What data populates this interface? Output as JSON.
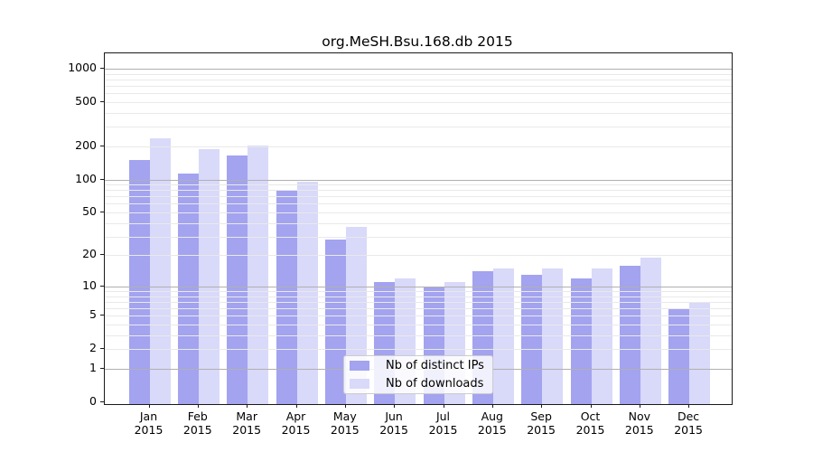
{
  "chart_data": {
    "type": "bar",
    "title": "org.MeSH.Bsu.168.db 2015",
    "categories": [
      "Jan",
      "Feb",
      "Mar",
      "Apr",
      "May",
      "Jun",
      "Jul",
      "Aug",
      "Sep",
      "Oct",
      "Nov",
      "Dec"
    ],
    "category_year": "2015",
    "series": [
      {
        "name": "Nb of distinct IPs",
        "color": "#a3a3f0",
        "values": [
          150,
          114,
          164,
          79,
          28,
          11,
          10,
          14,
          13,
          12,
          16,
          6
        ]
      },
      {
        "name": "Nb of downloads",
        "color": "#d9d9f9",
        "values": [
          235,
          187,
          202,
          96,
          37,
          12,
          11,
          15,
          15,
          15,
          19,
          7
        ]
      }
    ],
    "xlabel": "",
    "ylabel": "",
    "yscale": "log10(value+1)",
    "yticks": [
      0,
      1,
      2,
      5,
      10,
      20,
      50,
      100,
      200,
      500,
      1000
    ],
    "ylim": [
      0,
      1390
    ],
    "grid": true,
    "grid_major_at": [
      1,
      10,
      100,
      1000
    ],
    "legend_position": "inside-bottom-center",
    "colors": {
      "distinct_ips_bar": "#a3a3f0",
      "downloads_bar": "#d9d9f9",
      "grid_minor": "#e9e9e9",
      "grid_major": "#b0b0b0",
      "axis": "#1a1a1a",
      "background": "#ffffff"
    }
  }
}
